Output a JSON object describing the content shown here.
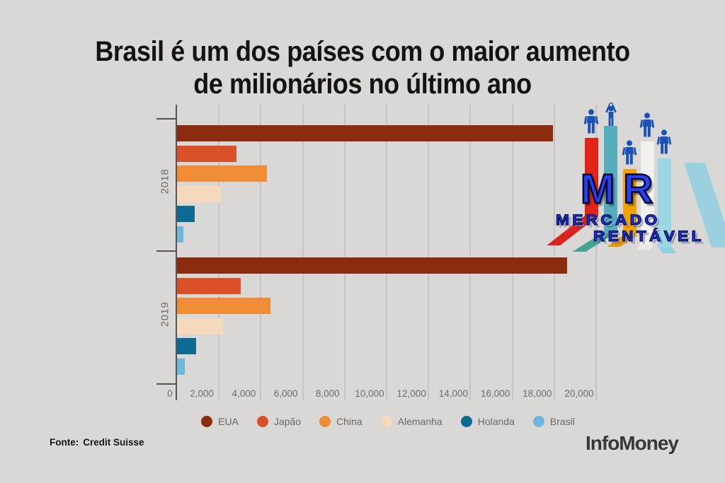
{
  "title": {
    "line1": "Brasil é um dos países com o maior aumento",
    "line2": "de milionários no último ano"
  },
  "chart_data": {
    "type": "bar",
    "orientation": "horizontal",
    "groups": [
      "2018",
      "2019"
    ],
    "series": [
      {
        "name": "EUA",
        "color": "#8b2c10",
        "values": [
          17940,
          18610
        ]
      },
      {
        "name": "Japão",
        "color": "#d8512b",
        "values": [
          2840,
          3025
        ]
      },
      {
        "name": "China",
        "color": "#f08c35",
        "values": [
          4290,
          4445
        ]
      },
      {
        "name": "Alemanha",
        "color": "#f5d9bc",
        "values": [
          2090,
          2185
        ]
      },
      {
        "name": "Holanda",
        "color": "#0d6a93",
        "values": [
          830,
          915
        ]
      },
      {
        "name": "Brasil",
        "color": "#6db6dd",
        "values": [
          310,
          365
        ]
      }
    ],
    "xlim": [
      0,
      20000
    ],
    "x_ticks": [
      0,
      2000,
      4000,
      6000,
      8000,
      10000,
      12000,
      14000,
      16000,
      18000,
      20000
    ],
    "x_tick_labels": [
      "0",
      "2,000",
      "4,000",
      "6,000",
      "8,000",
      "10,000",
      "12,000",
      "14,000",
      "16,000",
      "18,000",
      "20,000"
    ],
    "grid": true,
    "legend_position": "bottom"
  },
  "footer": {
    "fonte_label": "Fonte:",
    "fonte_value": "Credit Suisse",
    "brand": "InfoMoney"
  },
  "logo": {
    "monogram": "MR",
    "word1": "MERCADO",
    "word2": "RENTÁVEL",
    "person_color": "#1a52b5",
    "bar_colors": [
      "#e42318",
      "#54aebc",
      "#f0a202",
      "#f2f1ed",
      "#9bd7e4"
    ],
    "trail_colors": [
      "#d8241c",
      "#43a495",
      "#e89b04",
      "#eceae6",
      "#8fd0e0"
    ]
  }
}
